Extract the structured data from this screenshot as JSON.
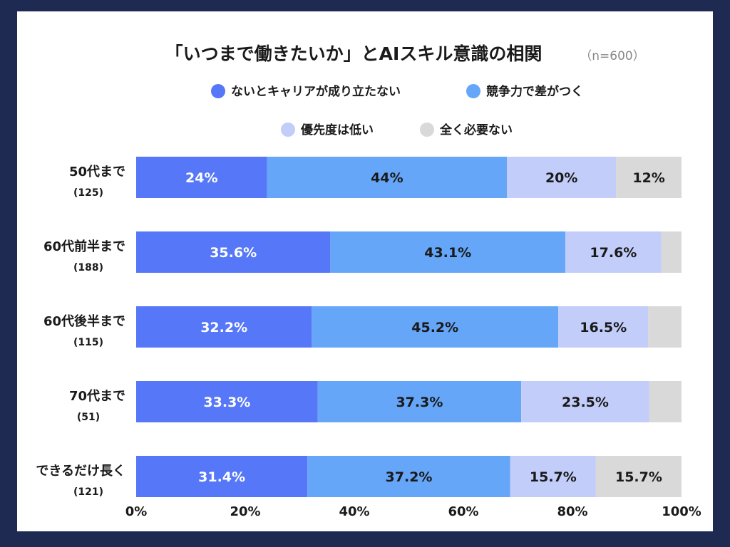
{
  "chart_data": {
    "type": "bar",
    "orientation": "horizontal",
    "stacked": true,
    "title": "「いつまで働きたいか」とAIスキル意識の相関",
    "sample_note": "（n=600）",
    "categories": [
      "50代まで",
      "60代前半まで",
      "60代後半まで",
      "70代まで",
      "できるだけ長く"
    ],
    "category_counts": [
      "(125)",
      "(188)",
      "(115)",
      "(51)",
      "(121)"
    ],
    "series": [
      {
        "name": "ないとキャリアが成り立たない",
        "values": [
          24,
          35.6,
          32.2,
          33.3,
          31.4
        ],
        "labels": [
          "24%",
          "35.6%",
          "32.2%",
          "33.3%",
          "31.4%"
        ],
        "color": "#5577f8",
        "label_color": "#ffffff"
      },
      {
        "name": "競争力で差がつく",
        "values": [
          44,
          43.1,
          45.2,
          37.3,
          37.2
        ],
        "labels": [
          "44%",
          "43.1%",
          "45.2%",
          "37.3%",
          "37.2%"
        ],
        "color": "#65a6f8",
        "label_color": "#1a1a1a"
      },
      {
        "name": "優先度は低い",
        "values": [
          20,
          17.6,
          16.5,
          23.5,
          15.7
        ],
        "labels": [
          "20%",
          "17.6%",
          "16.5%",
          "23.5%",
          "15.7%"
        ],
        "color": "#c3cdfa",
        "label_color": "#1a1a1a"
      },
      {
        "name": "全く必要ない",
        "values": [
          12,
          3.7,
          6.1,
          5.9,
          15.7
        ],
        "labels": [
          "12%",
          "",
          "",
          "",
          "15.7%"
        ],
        "color": "#d9d9d9",
        "label_color": "#1a1a1a"
      }
    ],
    "xlim": [
      0,
      100
    ],
    "x_ticks": [
      "0%",
      "20%",
      "40%",
      "60%",
      "80%",
      "100%"
    ],
    "legend_position": "top-center",
    "grid": false
  }
}
